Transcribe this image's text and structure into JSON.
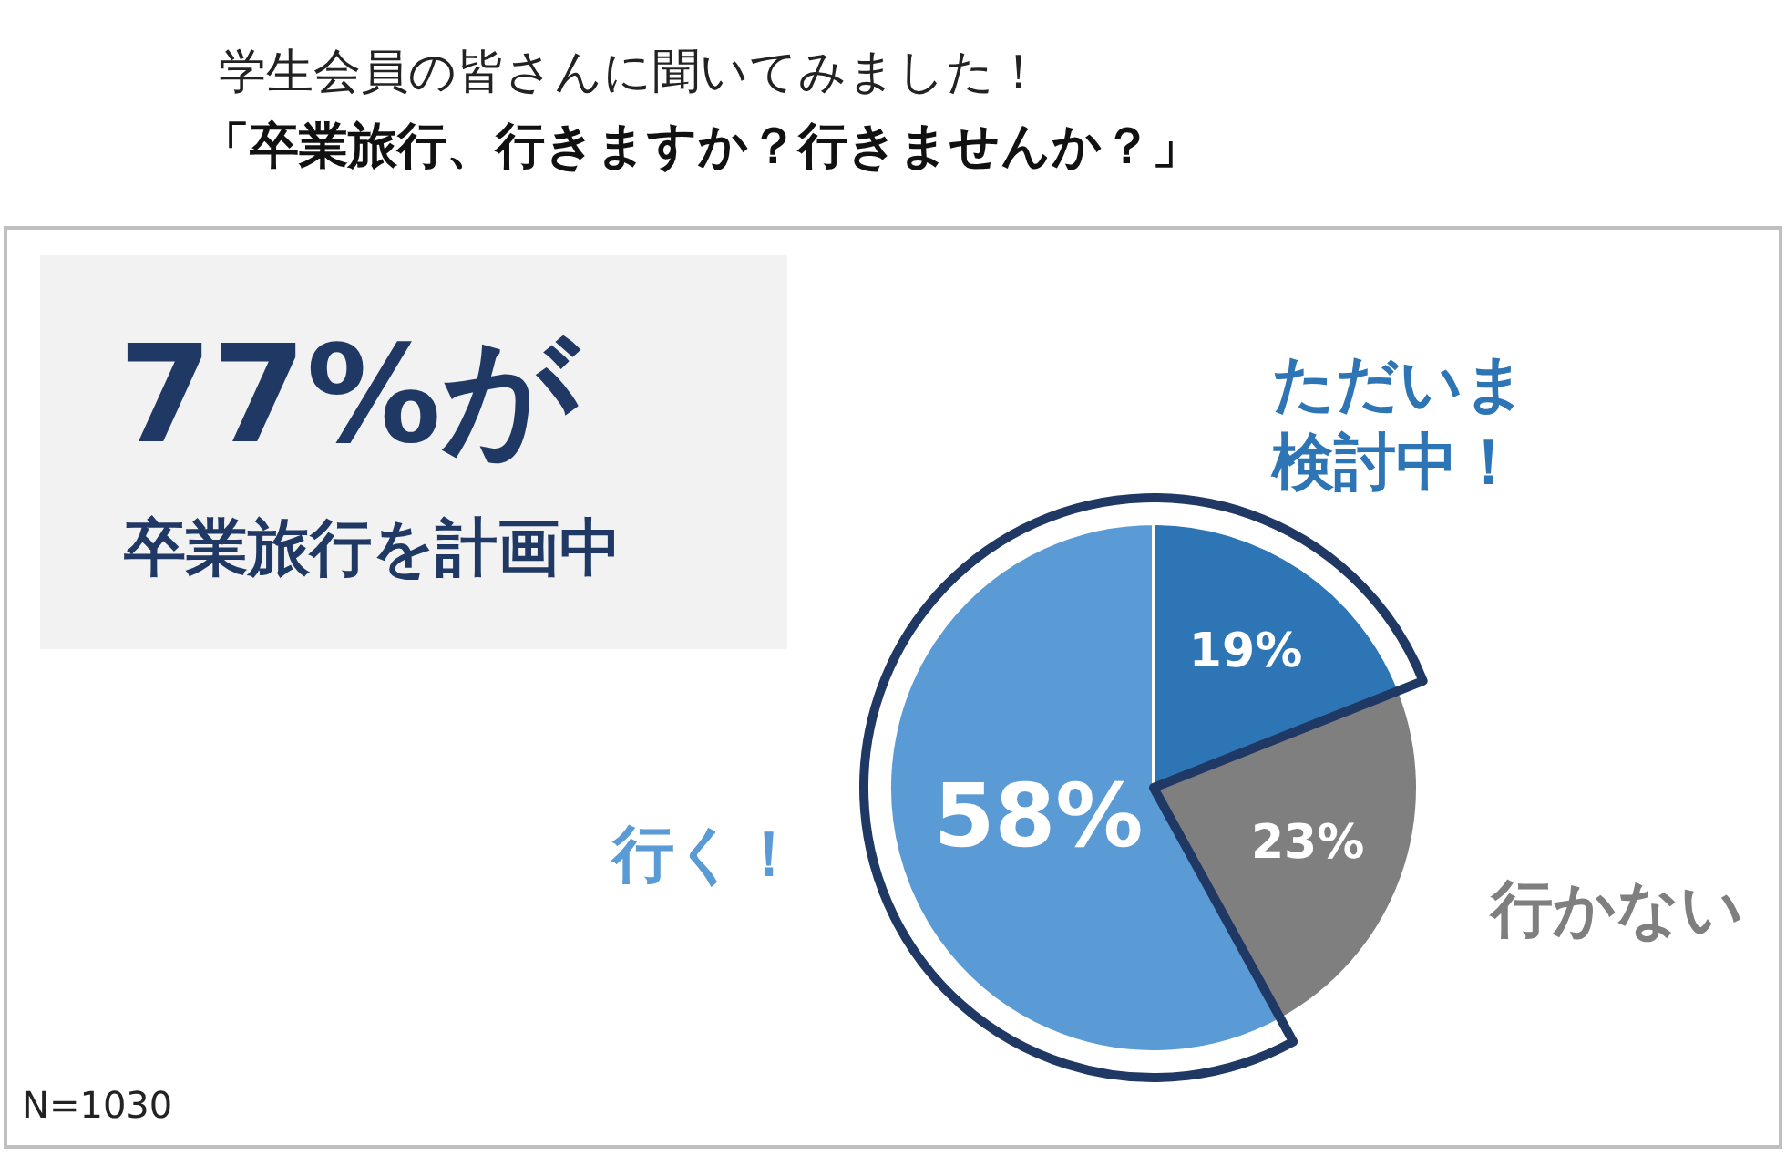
{
  "chart_data": {
    "type": "pie",
    "title": "学生会員の皆さんに聞いてみました！",
    "subtitle": "「卒業旅行、行きますか？行きませんか？」",
    "categories": [
      "ただいま検討中！",
      "行かない",
      "行く！"
    ],
    "values": [
      19,
      23,
      58
    ],
    "colors": [
      "#2e75b6",
      "#7f7f7f",
      "#5b9bd5"
    ],
    "value_labels": [
      "19%",
      "23%",
      "58%"
    ],
    "annotations": [
      "77%が",
      "卒業旅行を計画中",
      "N=1030"
    ]
  }
}
